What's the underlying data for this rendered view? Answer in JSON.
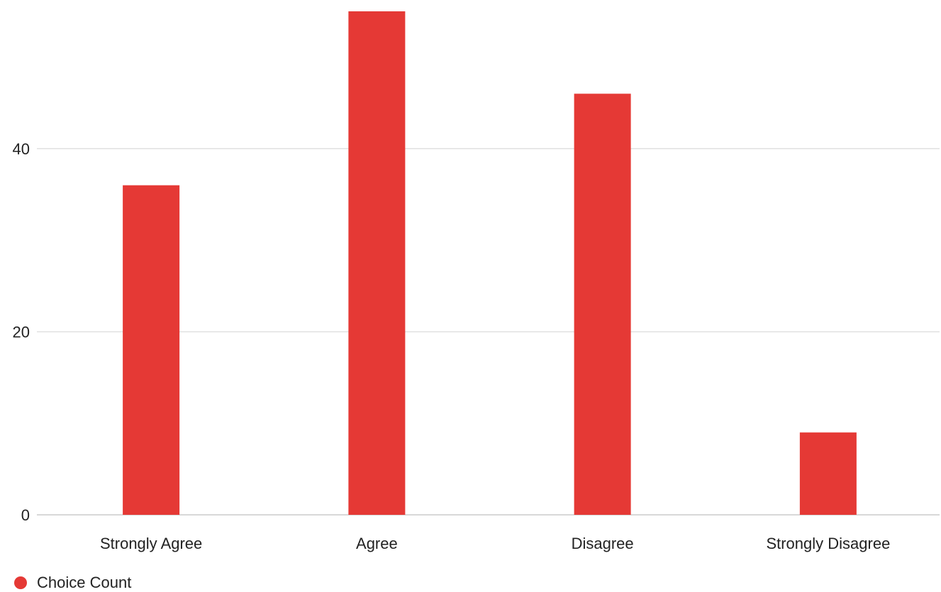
{
  "chart_data": {
    "type": "bar",
    "categories": [
      "Strongly Agree",
      "Agree",
      "Disagree",
      "Strongly Disagree"
    ],
    "series": [
      {
        "name": "Choice Count",
        "values": [
          36,
          55,
          46,
          9
        ],
        "color": "#e53935"
      }
    ],
    "ylim": [
      0,
      55
    ],
    "yticks": [
      0,
      20,
      40
    ],
    "grid": true,
    "legend_position": "bottom-left"
  }
}
